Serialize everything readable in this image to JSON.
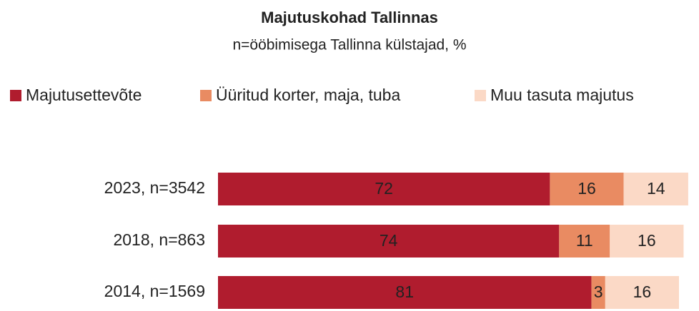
{
  "chart_data": {
    "type": "stacked_barh",
    "title": "Majutuskohad Tallinnas",
    "subtitle": "n=ööbimisega Tallinna külstajad, %",
    "categories": [
      "2023, n=3542",
      "2018, n=863",
      "2014, n=1569"
    ],
    "series": [
      {
        "name": "Majutusettevõte",
        "color": "#b01c2e",
        "values": [
          72,
          74,
          81
        ]
      },
      {
        "name": "Üüritud korter, maja, tuba",
        "color": "#e98b62",
        "values": [
          16,
          11,
          3
        ]
      },
      {
        "name": "Muu tasuta majutus",
        "color": "#fbd9c6",
        "values": [
          14,
          16,
          16
        ]
      }
    ],
    "xlim": [
      0,
      100
    ],
    "legend": "top"
  }
}
